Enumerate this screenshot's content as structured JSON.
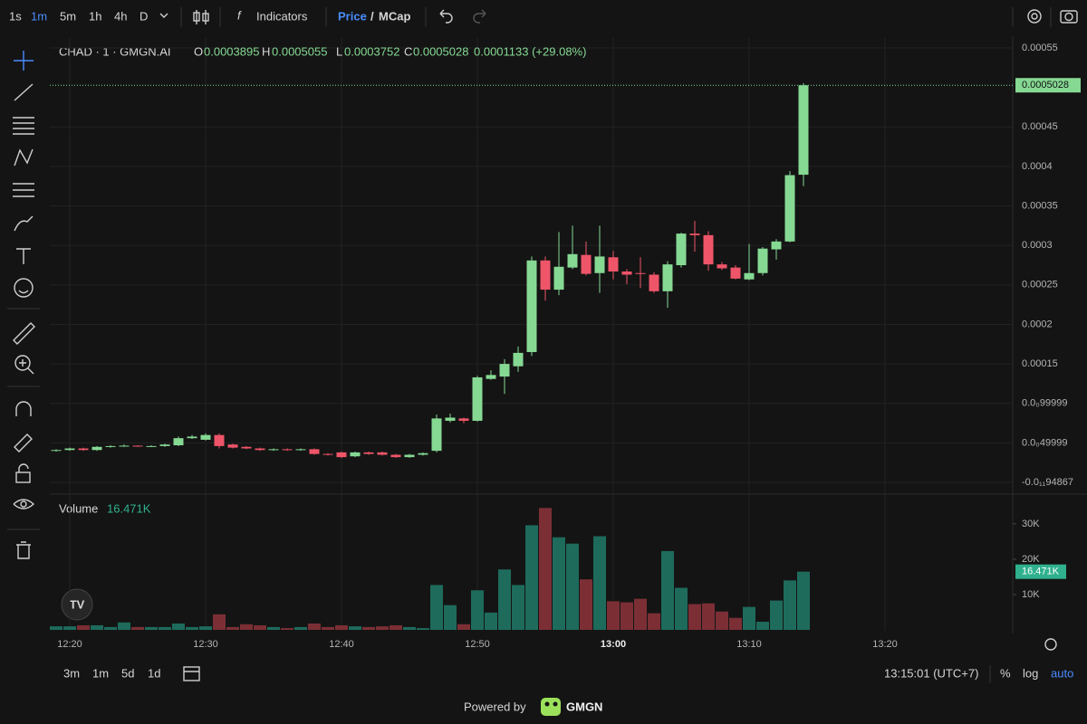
{
  "toolbar": {
    "intervals": [
      "1s",
      "1m",
      "5m",
      "1h",
      "4h",
      "D"
    ],
    "active_interval": 1,
    "indicators": "Indicators",
    "price": "Price",
    "separator": "/",
    "mcap": "MCap"
  },
  "legend": {
    "symbol": "CHAD · 1 · GMGN.AI",
    "open_label": "O",
    "high_label": "H",
    "low_label": "L",
    "close_label": "C",
    "change": "0.0001133 (+29.08%)"
  },
  "chart_data": [
    {
      "type": "candlestick",
      "open": [
        4e-05,
        4.1e-05,
        4.3e-05,
        4.1e-05,
        4.5e-05,
        4.6e-05,
        4.65e-05,
        4.55e-05,
        4.6e-05,
        4.7e-05,
        5.6e-05,
        5.4e-05,
        6e-05,
        4.8e-05,
        4.5e-05,
        4.3e-05,
        4.1e-05,
        4.2e-05,
        4.1e-05,
        4.2e-05,
        3.6e-05,
        3.8e-05,
        3.3e-05,
        3.8e-05,
        3.8e-05,
        3.5e-05,
        3.2e-05,
        3.5e-05,
        4e-05,
        7.8e-05,
        8.1e-05,
        7.8e-05,
        0.000131,
        0.000134,
        0.000147,
        0.000165,
        0.000281,
        0.000244,
        0.000272,
        0.000288,
        0.000265,
        0.000285,
        0.000267,
        0.000265,
        0.000263,
        0.000242,
        0.000275,
        0.000315,
        0.000313,
        0.000276,
        0.000272,
        0.000257,
        0.000265,
        0.000295,
        0.000305,
        0.0003895
      ],
      "high": [
        4.2e-05,
        4.4e-05,
        4.4e-05,
        4.6e-05,
        4.7e-05,
        4.8e-05,
        4.7e-05,
        4.7e-05,
        4.9e-05,
        5.8e-05,
        6e-05,
        6.2e-05,
        6.2e-05,
        4.9e-05,
        4.6e-05,
        4.4e-05,
        4.3e-05,
        4.3e-05,
        4.3e-05,
        4.3e-05,
        3.7e-05,
        3.9e-05,
        3.9e-05,
        3.9e-05,
        3.9e-05,
        3.6e-05,
        3.6e-05,
        3.8e-05,
        8.6e-05,
        8.7e-05,
        8.2e-05,
        0.000135,
        0.000142,
        0.000156,
        0.000172,
        0.000286,
        0.000286,
        0.000317,
        0.000325,
        0.000305,
        0.000325,
        0.000293,
        0.00027,
        0.000285,
        0.000266,
        0.00028,
        0.000316,
        0.000331,
        0.000318,
        0.000279,
        0.000275,
        0.000302,
        0.000298,
        0.000308,
        0.000394,
        0.0005055
      ],
      "low": [
        3.9e-05,
        4e-05,
        4e-05,
        4e-05,
        4.4e-05,
        4.5e-05,
        4.5e-05,
        4.5e-05,
        4.5e-05,
        4.6e-05,
        5.5e-05,
        5.3e-05,
        4.3e-05,
        4.3e-05,
        4.2e-05,
        4e-05,
        4e-05,
        4e-05,
        4e-05,
        3.5e-05,
        3.4e-05,
        3.1e-05,
        3.2e-05,
        3.5e-05,
        3.4e-05,
        3.1e-05,
        3.1e-05,
        3.4e-05,
        3.8e-05,
        7.6e-05,
        7.5e-05,
        7.7e-05,
        0.00013,
        0.000112,
        0.00014,
        0.00016,
        0.00023,
        0.000237,
        0.00027,
        0.000262,
        0.00024,
        0.000257,
        0.000251,
        0.000246,
        0.00024,
        0.000221,
        0.000272,
        0.000292,
        0.000268,
        0.000269,
        0.000257,
        0.000256,
        0.000262,
        0.000282,
        0.000304,
        0.0003752
      ],
      "close": [
        4.1e-05,
        4.3e-05,
        4.1e-05,
        4.5e-05,
        4.6e-05,
        4.65e-05,
        4.55e-05,
        4.6e-05,
        4.8e-05,
        5.6e-05,
        5.8e-05,
        6e-05,
        4.6e-05,
        4.4e-05,
        4.3e-05,
        4.1e-05,
        4.2e-05,
        4.1e-05,
        4.2e-05,
        3.6e-05,
        3.5e-05,
        3.2e-05,
        3.8e-05,
        3.6e-05,
        3.5e-05,
        3.2e-05,
        3.5e-05,
        3.7e-05,
        8.1e-05,
        8.2e-05,
        7.8e-05,
        0.000133,
        0.000136,
        0.00015,
        0.000164,
        0.000281,
        0.000244,
        0.000273,
        0.000289,
        0.000264,
        0.000286,
        0.000267,
        0.000263,
        0.000264,
        0.000242,
        0.000276,
        0.000315,
        0.000313,
        0.000276,
        0.000271,
        0.000258,
        0.000265,
        0.000296,
        0.000305,
        0.000389,
        0.0005028
      ],
      "up_color": "#86d993",
      "down_color": "#ef5569",
      "ylim": [
        -1.37e-05,
        0.0005626
      ],
      "yticks": [
        0.00055,
        0.00045,
        0.0004,
        0.00035,
        0.0003,
        0.00025,
        0.0002,
        0.00015,
        {
          "value": 9.9999e-05,
          "label": "0.0₀99999"
        },
        {
          "value": 4.9999e-05,
          "label": "0.0₀49999"
        },
        {
          "value": -9.4867e-13,
          "label": "-0.0₁₁94867"
        }
      ],
      "time_labels": [
        "12:20",
        "12:30",
        "12:40",
        "12:50",
        "13:00",
        "13:10",
        "13:20"
      ],
      "bold_time_label": 4,
      "grid": true
    },
    {
      "type": "bar",
      "title": "Volume",
      "last_value_label": "16.471K",
      "values": [
        1000,
        1000,
        1300,
        1300,
        800,
        2100,
        800,
        800,
        800,
        1800,
        800,
        1000,
        4400,
        800,
        1600,
        1300,
        800,
        500,
        800,
        1800,
        800,
        1300,
        1000,
        800,
        1000,
        1300,
        800,
        500,
        12700,
        7000,
        1600,
        11200,
        4900,
        17100,
        12700,
        29600,
        34500,
        26200,
        24400,
        14300,
        26500,
        8100,
        7800,
        8800,
        4700,
        22300,
        11900,
        7300,
        7500,
        5200,
        3400,
        6500,
        2300,
        8300,
        14000,
        16471
      ],
      "up_color": "#1e6b5c",
      "down_color": "#7b2f35",
      "ylim": [
        0,
        37900
      ],
      "yticks": [
        {
          "value": 10000,
          "label": "10K"
        },
        {
          "value": 20000,
          "label": "20K"
        },
        {
          "value": 30000,
          "label": "30K"
        }
      ]
    }
  ],
  "bottom_bar": {
    "ranges": [
      "3m",
      "1m",
      "5d",
      "1d"
    ],
    "clock": "13:15:01 (UTC+7)",
    "percent": "%",
    "log": "log",
    "auto": "auto"
  },
  "footer": {
    "powered_by": "Powered by",
    "brand": "GMGN"
  }
}
